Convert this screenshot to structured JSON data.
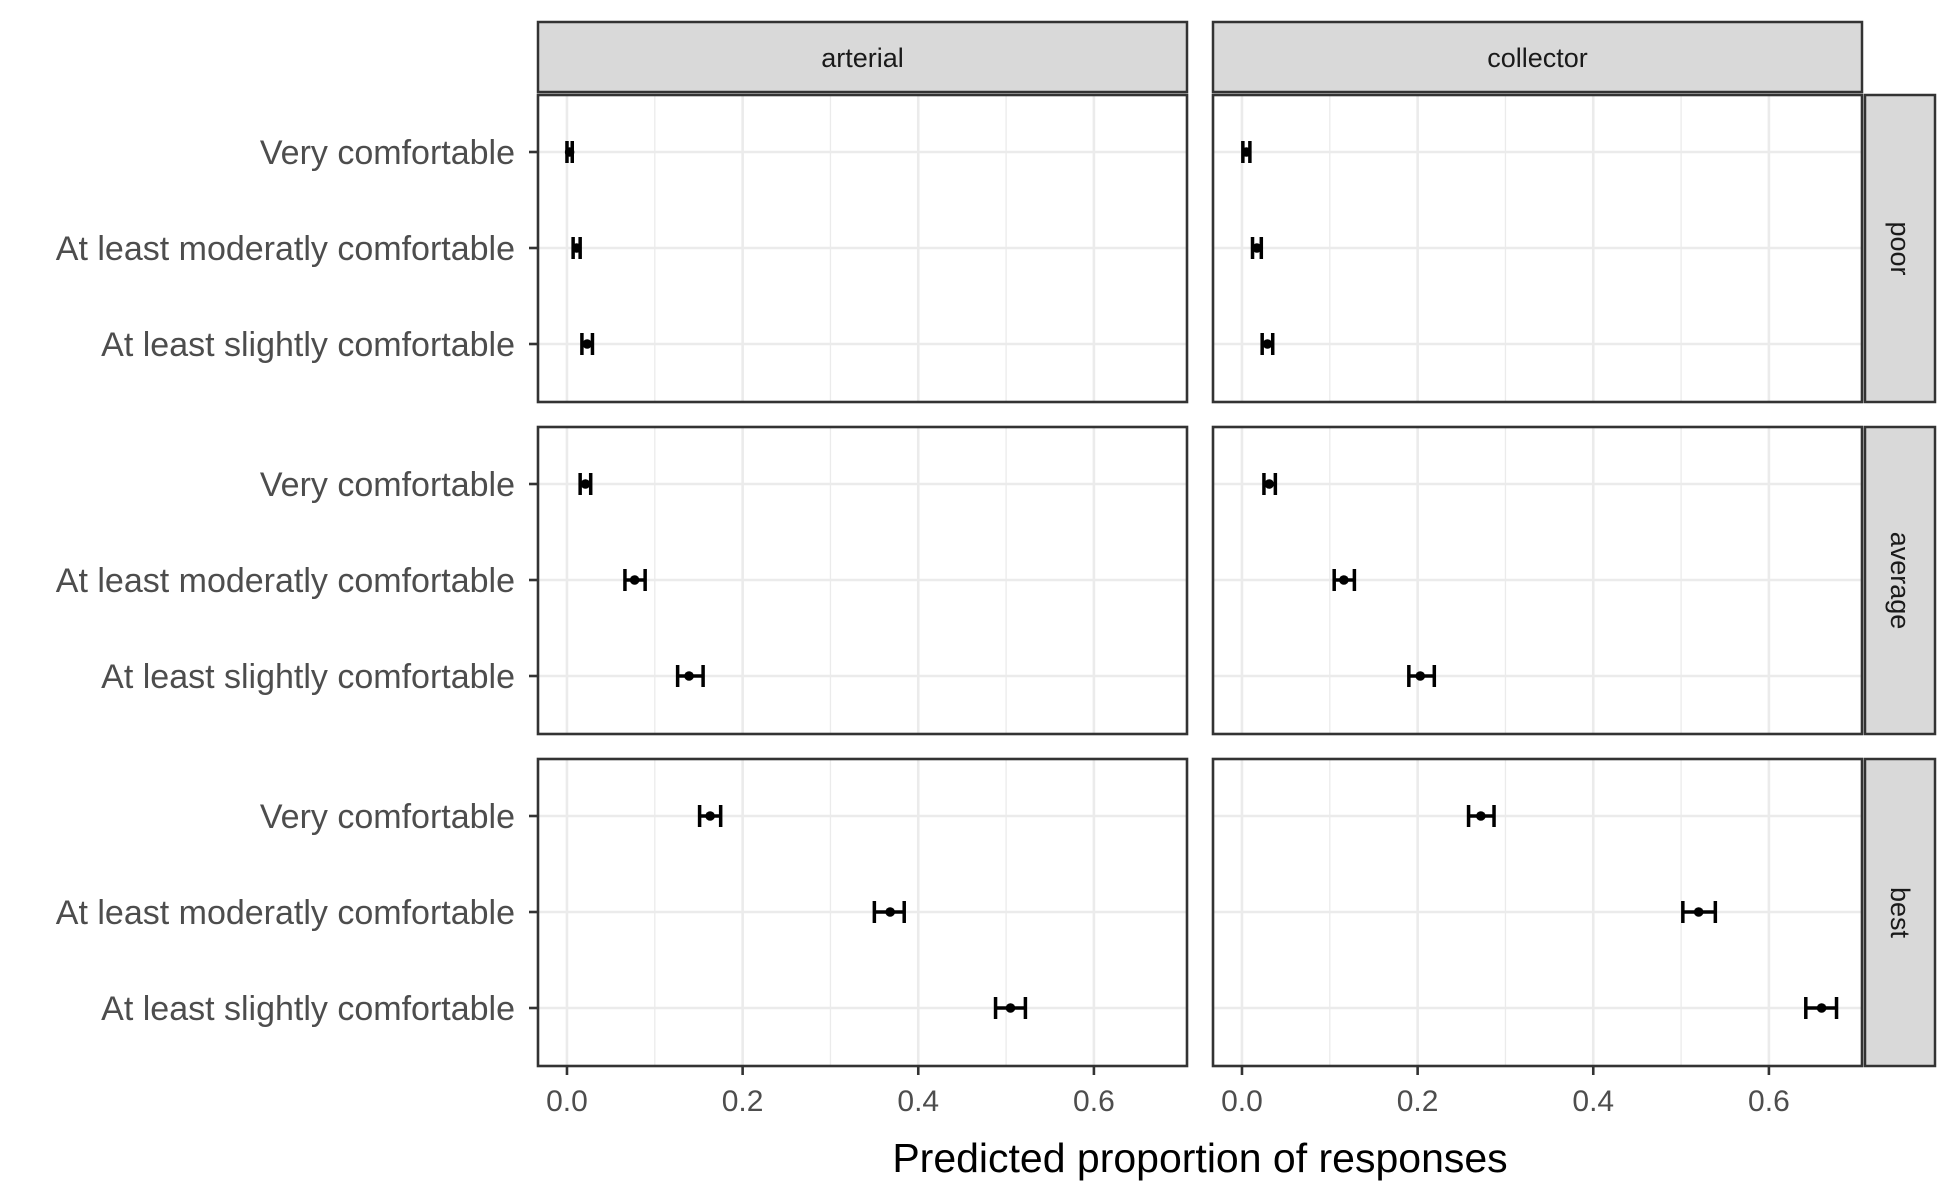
{
  "chart_data": {
    "type": "scatter",
    "subtype": "point with error bars, faceted",
    "title": "",
    "xlabel": "Predicted proportion of responses",
    "ylabel": "",
    "xlim": [
      -0.033,
      0.706
    ],
    "x_ticks": [
      0.0,
      0.2,
      0.4,
      0.6
    ],
    "x_tick_labels": [
      "0.0",
      "0.2",
      "0.4",
      "0.6"
    ],
    "grid": true,
    "legend": "none",
    "colors": {
      "point": "#000000",
      "strip_fill": "#d9d9d9",
      "panel_border": "#333333",
      "grid": "#ebebeb"
    },
    "columns": [
      "arterial",
      "collector"
    ],
    "rows": [
      "poor",
      "average",
      "best"
    ],
    "categories": [
      "Very comfortable",
      "At least moderatly comfortable",
      "At least slightly comfortable"
    ],
    "panels": [
      {
        "column": "arterial",
        "row": "poor",
        "points": [
          {
            "category": "Very comfortable",
            "value": 0.003,
            "lower": 0.0,
            "upper": 0.006
          },
          {
            "category": "At least moderatly comfortable",
            "value": 0.011,
            "lower": 0.007,
            "upper": 0.015
          },
          {
            "category": "At least slightly comfortable",
            "value": 0.023,
            "lower": 0.017,
            "upper": 0.029
          }
        ]
      },
      {
        "column": "collector",
        "row": "poor",
        "points": [
          {
            "category": "Very comfortable",
            "value": 0.005,
            "lower": 0.001,
            "upper": 0.009
          },
          {
            "category": "At least moderatly comfortable",
            "value": 0.017,
            "lower": 0.012,
            "upper": 0.022
          },
          {
            "category": "At least slightly comfortable",
            "value": 0.029,
            "lower": 0.023,
            "upper": 0.035
          }
        ]
      },
      {
        "column": "arterial",
        "row": "average",
        "points": [
          {
            "category": "Very comfortable",
            "value": 0.021,
            "lower": 0.015,
            "upper": 0.027
          },
          {
            "category": "At least moderatly comfortable",
            "value": 0.077,
            "lower": 0.066,
            "upper": 0.089
          },
          {
            "category": "At least slightly comfortable",
            "value": 0.139,
            "lower": 0.126,
            "upper": 0.155
          }
        ]
      },
      {
        "column": "collector",
        "row": "average",
        "points": [
          {
            "category": "Very comfortable",
            "value": 0.031,
            "lower": 0.025,
            "upper": 0.038
          },
          {
            "category": "At least moderatly comfortable",
            "value": 0.116,
            "lower": 0.105,
            "upper": 0.128
          },
          {
            "category": "At least slightly comfortable",
            "value": 0.203,
            "lower": 0.19,
            "upper": 0.219
          }
        ]
      },
      {
        "column": "arterial",
        "row": "best",
        "points": [
          {
            "category": "Very comfortable",
            "value": 0.163,
            "lower": 0.151,
            "upper": 0.175
          },
          {
            "category": "At least moderatly comfortable",
            "value": 0.368,
            "lower": 0.35,
            "upper": 0.384
          },
          {
            "category": "At least slightly comfortable",
            "value": 0.505,
            "lower": 0.488,
            "upper": 0.522
          }
        ]
      },
      {
        "column": "collector",
        "row": "best",
        "points": [
          {
            "category": "Very comfortable",
            "value": 0.272,
            "lower": 0.258,
            "upper": 0.287
          },
          {
            "category": "At least moderatly comfortable",
            "value": 0.52,
            "lower": 0.502,
            "upper": 0.539
          },
          {
            "category": "At least slightly comfortable",
            "value": 0.66,
            "lower": 0.642,
            "upper": 0.677
          }
        ]
      }
    ]
  }
}
